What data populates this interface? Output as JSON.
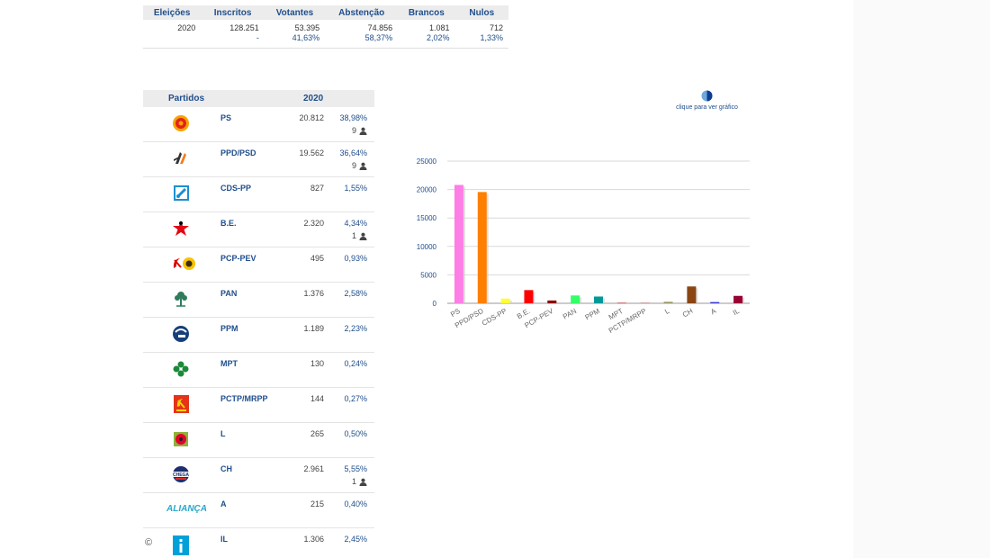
{
  "summary": {
    "headers": [
      "Eleições",
      "Inscritos",
      "Votantes",
      "Abstenção",
      "Brancos",
      "Nulos"
    ],
    "row_values": [
      "2020",
      "128.251",
      "53.395",
      "74.856",
      "1.081",
      "712"
    ],
    "row_pcts": [
      "",
      "-",
      "41,63%",
      "58,37%",
      "2,02%",
      "1,33%"
    ]
  },
  "parties_table": {
    "header_party": "Partidos",
    "header_year": "2020",
    "rows": [
      {
        "name": "PS",
        "votes": "20.812",
        "pct": "38,98%",
        "seats": "9",
        "logo": "ps-fist-rose-icon"
      },
      {
        "name": "PPD/PSD",
        "votes": "19.562",
        "pct": "36,64%",
        "seats": "9",
        "logo": "psd-arrows-icon"
      },
      {
        "name": "CDS-PP",
        "votes": "827",
        "pct": "1,55%",
        "seats": "",
        "logo": "cds-square-icon"
      },
      {
        "name": "B.E.",
        "votes": "2.320",
        "pct": "4,34%",
        "seats": "1",
        "logo": "be-star-figure-icon"
      },
      {
        "name": "PCP-PEV",
        "votes": "495",
        "pct": "0,93%",
        "seats": "",
        "logo": "hammer-sickle-sunflower-icon"
      },
      {
        "name": "PAN",
        "votes": "1.376",
        "pct": "2,58%",
        "seats": "",
        "logo": "pan-tree-icon"
      },
      {
        "name": "PPM",
        "votes": "1.189",
        "pct": "2,23%",
        "seats": "",
        "logo": "ppm-circle-icon"
      },
      {
        "name": "MPT",
        "votes": "130",
        "pct": "0,24%",
        "seats": "",
        "logo": "mpt-clover-icon"
      },
      {
        "name": "PCTP/MRPP",
        "votes": "144",
        "pct": "0,27%",
        "seats": "",
        "logo": "pctp-hammer-sickle-icon"
      },
      {
        "name": "L",
        "votes": "265",
        "pct": "0,50%",
        "seats": "",
        "logo": "livre-poppy-icon"
      },
      {
        "name": "CH",
        "votes": "2.961",
        "pct": "5,55%",
        "seats": "1",
        "logo": "chega-badge-icon"
      },
      {
        "name": "A",
        "votes": "215",
        "pct": "0,40%",
        "seats": "",
        "logo": "alianca-wordmark-icon",
        "logo_text": "ALIANÇA"
      },
      {
        "name": "IL",
        "votes": "1.306",
        "pct": "2,45%",
        "seats": "",
        "logo": "il-i-icon"
      }
    ]
  },
  "copyright": "©",
  "chart_toggle": {
    "label": "clique para ver gráfico",
    "icon": "pie-chart-icon"
  },
  "chart_data": {
    "type": "bar",
    "categories": [
      "PS",
      "PPD/PSD",
      "CDS-PP",
      "B.E.",
      "PCP-PEV",
      "PAN",
      "PPM",
      "MPT",
      "PCTP/MRPP",
      "L",
      "CH",
      "A",
      "IL"
    ],
    "values": [
      20812,
      19562,
      827,
      2320,
      495,
      1376,
      1189,
      130,
      144,
      265,
      2961,
      215,
      1306
    ],
    "colors": [
      "#ff7ee6",
      "#ff7f00",
      "#ffff33",
      "#ff0000",
      "#8b0000",
      "#33ff66",
      "#009999",
      "#cc6666",
      "#cc9999",
      "#999966",
      "#8b4513",
      "#3333cc",
      "#990033"
    ],
    "ylim": [
      0,
      25000
    ],
    "yticks": [
      0,
      5000,
      10000,
      15000,
      20000,
      25000
    ],
    "title": "",
    "xlabel": "",
    "ylabel": "",
    "grid": true,
    "legend": "none"
  }
}
